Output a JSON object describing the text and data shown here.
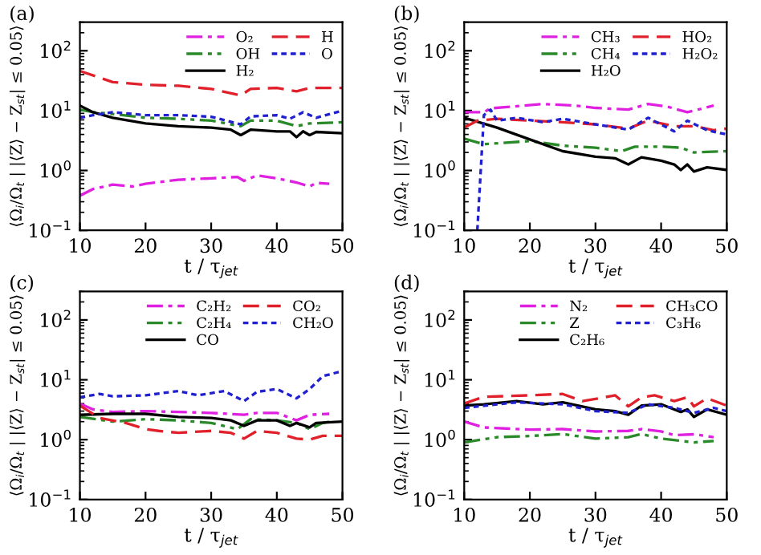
{
  "chart_data": [
    {
      "type": "line",
      "annotations": [
        "(a)"
      ],
      "xlabel": "t / τ$_{jet}$",
      "ylabel": "⟨Ω$_{i}$/Ω$_{t}$ | |⟨Z⟩ − Z$_{st}$| ≤ 0.05⟩",
      "log": "y",
      "xlim": [
        10,
        50
      ],
      "ylim": [
        0.1,
        300
      ],
      "xticks": [
        10,
        20,
        30,
        40,
        50
      ],
      "yticks": [
        {
          "value": 0.1,
          "label": "10$^{−1}$"
        },
        {
          "value": 1,
          "label": "10$^{0}$"
        },
        {
          "value": 10,
          "label": "10$^{1}$"
        },
        {
          "value": 100,
          "label": "10$^{2}$"
        }
      ],
      "legend": "top right",
      "grid": false,
      "series": [
        {
          "name": "O₂",
          "color": "#e020e0",
          "line_style": "dashdot",
          "x": [
            10,
            12,
            15,
            18,
            20,
            25,
            30,
            34,
            35,
            37,
            40,
            43,
            45,
            46,
            48
          ],
          "values": [
            0.38,
            0.49,
            0.58,
            0.54,
            0.6,
            0.7,
            0.74,
            0.78,
            0.67,
            0.83,
            0.74,
            0.63,
            0.54,
            0.62,
            0.6
          ]
        },
        {
          "name": "OH",
          "color": "#2a8a2a",
          "line_style": "dashdotdot",
          "x": [
            10,
            12,
            15,
            20,
            25,
            30,
            34.5,
            36,
            40,
            43,
            45,
            50
          ],
          "values": [
            10.4,
            9.4,
            8.8,
            7.6,
            7.3,
            6.8,
            5.5,
            6.8,
            6.8,
            5.5,
            6.1,
            6.4
          ]
        },
        {
          "name": "H₂",
          "color": "#000000",
          "line_style": "solid",
          "x": [
            10,
            12,
            15,
            20,
            25,
            30,
            33,
            34.5,
            36,
            40,
            42,
            43,
            44,
            45,
            46,
            50
          ],
          "values": [
            12.1,
            9.4,
            7.6,
            6.1,
            5.5,
            5.2,
            4.8,
            3.9,
            4.8,
            4.5,
            4.5,
            3.6,
            4.5,
            3.9,
            4.4,
            4.2
          ]
        },
        {
          "name": "H",
          "color": "#e0202a",
          "line_style": "dashed",
          "x": [
            10,
            15,
            20,
            25,
            30,
            34.5,
            36,
            40,
            43,
            45,
            50
          ],
          "values": [
            46,
            30,
            27,
            26,
            23,
            18,
            23,
            24,
            21,
            24,
            24
          ]
        },
        {
          "name": "O",
          "color": "#2020d0",
          "line_style": "dotted",
          "x": [
            10,
            12,
            15,
            20,
            25,
            30,
            34.5,
            36,
            40,
            42,
            44,
            46,
            50
          ],
          "values": [
            7.6,
            8.4,
            9.4,
            8.4,
            8.4,
            7.9,
            5.9,
            8,
            8.4,
            7.3,
            9.4,
            7.6,
            10
          ]
        }
      ]
    },
    {
      "type": "line",
      "annotations": [
        "(b)"
      ],
      "xlabel": "t / τ$_{jet}$",
      "ylabel": "⟨Ω$_{i}$/Ω$_{t}$ | |⟨Z⟩ − Z$_{st}$| ≤ 0.05⟩",
      "log": "y",
      "xlim": [
        10,
        50
      ],
      "ylim": [
        0.1,
        300
      ],
      "xticks": [
        10,
        20,
        30,
        40,
        50
      ],
      "yticks": [
        {
          "value": 0.1,
          "label": "10$^{−1}$"
        },
        {
          "value": 1,
          "label": "10$^{0}$"
        },
        {
          "value": 10,
          "label": "10$^{1}$"
        },
        {
          "value": 100,
          "label": "10$^{2}$"
        }
      ],
      "legend": "top right",
      "grid": false,
      "series": [
        {
          "name": "CH₃",
          "color": "#e020e0",
          "line_style": "dashdot",
          "x": [
            10,
            13,
            14,
            17,
            22,
            27,
            30,
            35,
            38,
            41,
            44,
            48
          ],
          "values": [
            9.4,
            9.4,
            10.9,
            11.6,
            12.9,
            12.1,
            11.1,
            10.4,
            12.9,
            11.6,
            9.4,
            12.1
          ]
        },
        {
          "name": "CH₄",
          "color": "#2a8a2a",
          "line_style": "dashdotdot",
          "x": [
            10,
            13,
            20,
            25,
            30,
            34,
            36,
            40,
            43,
            45,
            50
          ],
          "values": [
            3.4,
            2.75,
            3.1,
            2.6,
            2.4,
            2.1,
            2.5,
            2.5,
            2.4,
            2.0,
            2.1
          ]
        },
        {
          "name": "H₂O",
          "color": "#000000",
          "line_style": "solid",
          "x": [
            10,
            15,
            20,
            25,
            30,
            33,
            35,
            37,
            40,
            42,
            43,
            44,
            45,
            47,
            50
          ],
          "values": [
            7.6,
            5.2,
            3.3,
            2.1,
            1.7,
            1.6,
            1.26,
            1.66,
            1.46,
            1.26,
            1.02,
            1.26,
            0.96,
            1.13,
            1.02
          ]
        },
        {
          "name": "HO₂",
          "color": "#e0202a",
          "line_style": "dashed",
          "x": [
            10,
            12,
            15,
            20,
            25,
            30,
            35,
            38,
            42,
            45,
            48,
            50
          ],
          "values": [
            5.2,
            6.8,
            7.3,
            6.8,
            6.4,
            5.9,
            5.0,
            6.8,
            5.5,
            5.5,
            4.7,
            5.0
          ]
        },
        {
          "name": "H₂O₂",
          "color": "#2020d0",
          "line_style": "dotted",
          "x": [
            12,
            13,
            14,
            15,
            18,
            22,
            25,
            30,
            35,
            38,
            42,
            44,
            47,
            50
          ],
          "values": [
            0.1,
            8.4,
            10.4,
            6.8,
            7.6,
            6.4,
            7.3,
            5.9,
            4.8,
            7.6,
            4.5,
            6.8,
            4.7,
            4.0
          ]
        }
      ]
    },
    {
      "type": "line",
      "annotations": [
        "(c)"
      ],
      "xlabel": "t / τ$_{jet}$",
      "ylabel": "⟨Ω$_{i}$/Ω$_{t}$ | |⟨Z⟩ − Z$_{st}$| ≤ 0.05⟩",
      "log": "y",
      "xlim": [
        10,
        50
      ],
      "ylim": [
        0.1,
        300
      ],
      "xticks": [
        10,
        20,
        30,
        40,
        50
      ],
      "yticks": [
        {
          "value": 0.1,
          "label": "10$^{−1}$"
        },
        {
          "value": 1,
          "label": "10$^{0}$"
        },
        {
          "value": 10,
          "label": "10$^{1}$"
        },
        {
          "value": 100,
          "label": "10$^{2}$"
        }
      ],
      "legend": "top right",
      "grid": false,
      "series": [
        {
          "name": "C₂H₂",
          "color": "#e020e0",
          "line_style": "dashdot",
          "x": [
            10,
            12,
            15,
            20,
            25,
            30,
            35,
            37,
            40,
            43,
            45,
            48
          ],
          "values": [
            4.0,
            3.2,
            2.9,
            3.0,
            2.9,
            2.8,
            2.6,
            2.8,
            2.8,
            2.1,
            2.6,
            2.7
          ]
        },
        {
          "name": "C₂H₄",
          "color": "#2a8a2a",
          "line_style": "dashdotdot",
          "x": [
            10,
            15,
            20,
            25,
            30,
            34,
            36,
            40,
            43,
            45,
            47,
            48
          ],
          "values": [
            2.4,
            2.0,
            2.2,
            2.1,
            1.9,
            1.5,
            2.2,
            2.1,
            1.9,
            1.5,
            1.9,
            2.0
          ]
        },
        {
          "name": "CO",
          "color": "#000000",
          "line_style": "solid",
          "x": [
            10,
            15,
            20,
            25,
            30,
            33,
            35,
            37,
            40,
            42,
            43,
            45,
            46,
            50
          ],
          "values": [
            2.6,
            2.7,
            2.7,
            2.4,
            2.3,
            2.1,
            1.7,
            2.1,
            2.1,
            1.7,
            1.9,
            1.6,
            1.9,
            2.0
          ]
        },
        {
          "name": "CO₂",
          "color": "#e0202a",
          "line_style": "dashed",
          "x": [
            10,
            13,
            17,
            20,
            22,
            25,
            30,
            33,
            35,
            37,
            40,
            43,
            45,
            47,
            50
          ],
          "values": [
            3.7,
            2.3,
            1.9,
            1.5,
            1.4,
            1.3,
            1.4,
            1.3,
            1.04,
            1.4,
            1.3,
            1.04,
            1.0,
            1.16,
            1.16
          ]
        },
        {
          "name": "CH₂O",
          "color": "#2020d0",
          "line_style": "dotted",
          "x": [
            10,
            13,
            15,
            20,
            25,
            28,
            32,
            35,
            37,
            40,
            43,
            45,
            47,
            50
          ],
          "values": [
            5.1,
            5.8,
            5.3,
            5.5,
            6.5,
            5.5,
            6.5,
            4.4,
            6.3,
            7.0,
            4.9,
            7.0,
            11.5,
            14
          ]
        }
      ]
    },
    {
      "type": "line",
      "annotations": [
        "(d)"
      ],
      "xlabel": "t / τ$_{jet}$",
      "ylabel": "⟨Ω$_{i}$/Ω$_{t}$ | |⟨Z⟩ − Z$_{st}$| ≤ 0.05⟩",
      "log": "y",
      "xlim": [
        10,
        50
      ],
      "ylim": [
        0.1,
        300
      ],
      "xticks": [
        10,
        20,
        30,
        40,
        50
      ],
      "yticks": [
        {
          "value": 0.1,
          "label": "10$^{−1}$"
        },
        {
          "value": 1,
          "label": "10$^{0}$"
        },
        {
          "value": 10,
          "label": "10$^{1}$"
        },
        {
          "value": 100,
          "label": "10$^{2}$"
        }
      ],
      "legend": "top right",
      "grid": false,
      "series": [
        {
          "name": "N₂",
          "color": "#e020e0",
          "line_style": "dashdot",
          "x": [
            10,
            13,
            20,
            25,
            30,
            35,
            37,
            40,
            42,
            45,
            48
          ],
          "values": [
            2.0,
            1.6,
            1.47,
            1.5,
            1.37,
            1.4,
            1.5,
            1.37,
            1.19,
            1.23,
            1.1
          ]
        },
        {
          "name": "Z",
          "color": "#2a8a2a",
          "line_style": "dashdotdot",
          "x": [
            10,
            15,
            20,
            25,
            30,
            35,
            37,
            40,
            45,
            48
          ],
          "values": [
            0.9,
            1.1,
            1.15,
            1.24,
            1.04,
            1.1,
            1.24,
            1.04,
            0.9,
            0.95
          ]
        },
        {
          "name": "C₂H₆",
          "color": "#000000",
          "line_style": "solid",
          "x": [
            10,
            13,
            18,
            22,
            25,
            30,
            33,
            35,
            37,
            40,
            42,
            43,
            44,
            45,
            47,
            50
          ],
          "values": [
            3.7,
            3.9,
            4.4,
            3.9,
            4.2,
            3.2,
            3.0,
            2.6,
            3.7,
            3.9,
            3.2,
            2.9,
            3.2,
            2.4,
            3.2,
            2.6
          ]
        },
        {
          "name": "CH₃CO",
          "color": "#e0202a",
          "line_style": "dashed",
          "x": [
            10,
            13,
            20,
            25,
            28,
            30,
            33,
            35,
            37,
            39,
            42,
            44,
            45,
            47,
            50
          ],
          "values": [
            4.0,
            5.2,
            5.5,
            5.8,
            4.4,
            4.8,
            5.5,
            3.6,
            5.1,
            5.5,
            4.4,
            5.1,
            3.6,
            4.9,
            3.7
          ]
        },
        {
          "name": "C₃H₆",
          "color": "#2020d0",
          "line_style": "dotted",
          "x": [
            10,
            18,
            25,
            30,
            35,
            38,
            42,
            45,
            48,
            50
          ],
          "values": [
            3.4,
            4.2,
            3.9,
            3.0,
            2.8,
            3.9,
            3.4,
            2.8,
            3.4,
            3.0
          ]
        }
      ]
    }
  ]
}
